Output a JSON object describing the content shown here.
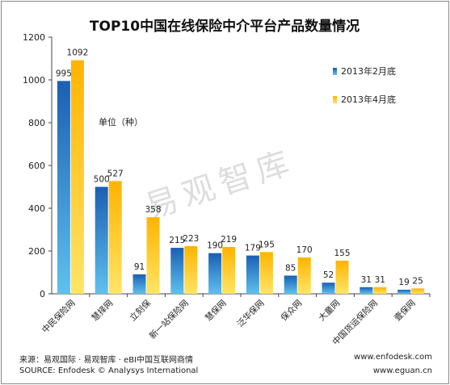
{
  "chart_data": {
    "type": "bar",
    "title": "TOP10中国在线保险中介平台产品数量情况",
    "ylabel": "单位（种）",
    "xlabel": "",
    "ylim": [
      0,
      1200
    ],
    "yticks": [
      0,
      200,
      400,
      600,
      800,
      1000,
      1200
    ],
    "grid": false,
    "legend_position": "right",
    "categories": [
      "中民保险网",
      "慧择网",
      "立刻保",
      "新一站保险网",
      "慧保网",
      "泛华保网",
      "保众网",
      "大童网",
      "中国货运保险网",
      "壹保网"
    ],
    "series": [
      {
        "name": "2013年2月底",
        "values": [
          995,
          500,
          91,
          215,
          190,
          179,
          85,
          52,
          31,
          19
        ]
      },
      {
        "name": "2013年4月底",
        "values": [
          1092,
          527,
          358,
          223,
          219,
          195,
          170,
          155,
          31,
          25
        ]
      }
    ]
  },
  "colors": {
    "series_1": "#1a5fb4",
    "series_1_light": "#5fc1ee",
    "series_2": "#ffb400",
    "series_2_light": "#ffe566",
    "axis": "#444444",
    "watermark": "#dddddd"
  },
  "watermark": "易观智库",
  "footer": {
    "source_cn": "来源：易观国际 · 易观智库 · eBI中国互联网商情",
    "source_en": "SOURCE: Enfodesk © Analysys International",
    "url_1": "www.enfodesk.com",
    "url_2": "www.eguan.cn"
  }
}
